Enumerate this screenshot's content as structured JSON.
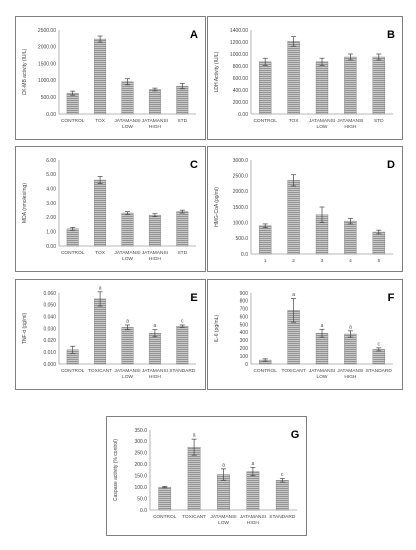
{
  "figure": {
    "panels": [
      {
        "letter": "A"
      },
      {
        "letter": "B"
      },
      {
        "letter": "C"
      },
      {
        "letter": "D"
      },
      {
        "letter": "E"
      },
      {
        "letter": "F"
      },
      {
        "letter": "G"
      }
    ]
  },
  "chart_data": [
    {
      "type": "bar",
      "panel": "A",
      "title": "",
      "xlabel": "",
      "ylabel": "CK-MB activity (IU/L)",
      "categories": [
        [
          "CONTROL"
        ],
        [
          "TOX"
        ],
        [
          "JATAMANSI",
          "LOW"
        ],
        [
          "JATAMANSI",
          "HIGH"
        ],
        [
          "STD"
        ]
      ],
      "values": [
        620,
        2230,
        960,
        730,
        830
      ],
      "errors": [
        60,
        90,
        90,
        40,
        80
      ],
      "annotations": [],
      "yticks": [
        0,
        500,
        1000,
        1500,
        2000,
        2500
      ],
      "yticklabels": [
        "0.00",
        "500.00",
        "1000.00",
        "1500.00",
        "2000.00",
        "2500.00"
      ],
      "ylim": [
        0,
        2500
      ],
      "grid": false,
      "legend": "none"
    },
    {
      "type": "bar",
      "panel": "B",
      "title": "",
      "xlabel": "",
      "ylabel": "LDH Activity (IU/L)",
      "categories": [
        [
          "CONTROL"
        ],
        [
          "TOX"
        ],
        [
          "JATAMANSI",
          "LOW"
        ],
        [
          "JATAMANSI",
          "HIGH"
        ],
        [
          "STD"
        ]
      ],
      "values": [
        870,
        1210,
        870,
        950,
        950
      ],
      "errors": [
        60,
        80,
        60,
        50,
        50
      ],
      "annotations": [],
      "yticks": [
        0,
        200,
        400,
        600,
        800,
        1000,
        1200,
        1400
      ],
      "yticklabels": [
        "0.00",
        "200.00",
        "400.00",
        "600.00",
        "800.00",
        "1000.00",
        "1200.00",
        "1400.00"
      ],
      "ylim": [
        0,
        1400
      ],
      "grid": false,
      "legend": "none"
    },
    {
      "type": "bar",
      "panel": "C",
      "title": "",
      "xlabel": "",
      "ylabel": "MDA (nmoles/mg)",
      "categories": [
        [
          "CONTROL"
        ],
        [
          "TOX"
        ],
        [
          "JATAMANSI",
          "LOW"
        ],
        [
          "JATAMANSI",
          "HIGH"
        ],
        [
          "STD"
        ]
      ],
      "values": [
        1.2,
        4.6,
        2.3,
        2.15,
        2.4
      ],
      "errors": [
        0.1,
        0.25,
        0.1,
        0.1,
        0.1
      ],
      "annotations": [],
      "yticks": [
        0,
        1,
        2,
        3,
        4,
        5,
        6
      ],
      "yticklabels": [
        "0.00",
        "1.00",
        "2.00",
        "3.00",
        "4.00",
        "5.00",
        "6.00"
      ],
      "ylim": [
        0,
        6
      ],
      "grid": false,
      "legend": "none"
    },
    {
      "type": "bar",
      "panel": "D",
      "title": "",
      "xlabel": "",
      "ylabel": "HMG-CoA (pg/ml)",
      "categories": [
        [
          "1"
        ],
        [
          "2"
        ],
        [
          "3"
        ],
        [
          "4"
        ],
        [
          "5"
        ]
      ],
      "values": [
        900,
        2350,
        1250,
        1050,
        700
      ],
      "errors": [
        60,
        180,
        250,
        90,
        60
      ],
      "annotations": [],
      "yticks": [
        0,
        500,
        1000,
        1500,
        2000,
        2500,
        3000
      ],
      "yticklabels": [
        "0.0",
        "500.0",
        "1000.0",
        "1500.0",
        "2000.0",
        "2500.0",
        "3000.0"
      ],
      "ylim": [
        0,
        3000
      ],
      "grid": false,
      "legend": "none"
    },
    {
      "type": "bar",
      "panel": "E",
      "title": "",
      "xlabel": "",
      "ylabel": "TNF-α (pg/ml)",
      "categories": [
        [
          "CONTROL"
        ],
        [
          "TOXICANT"
        ],
        [
          "JATAMANSI",
          "LOW"
        ],
        [
          "JATAMANSI",
          "HIGH"
        ],
        [
          "STANDARD"
        ]
      ],
      "values": [
        0.012,
        0.055,
        0.031,
        0.026,
        0.032
      ],
      "errors": [
        0.003,
        0.006,
        0.002,
        0.003,
        0.001
      ],
      "annotations": [
        "",
        "a",
        "a",
        "a",
        "c"
      ],
      "yticks": [
        0,
        0.01,
        0.02,
        0.03,
        0.04,
        0.05,
        0.06
      ],
      "yticklabels": [
        "0.000",
        "0.010",
        "0.020",
        "0.030",
        "0.040",
        "0.050",
        "0.060"
      ],
      "ylim": [
        0,
        0.06
      ],
      "grid": false,
      "legend": "none"
    },
    {
      "type": "bar",
      "panel": "F",
      "title": "",
      "xlabel": "",
      "ylabel": "IL-6 (pg/mL)",
      "categories": [
        [
          "CONTROL"
        ],
        [
          "TOXICANT"
        ],
        [
          "JATAMANSI",
          "LOW"
        ],
        [
          "JATAMANSI",
          "HIGH"
        ],
        [
          "STANDARD"
        ]
      ],
      "values": [
        50,
        680,
        390,
        380,
        185
      ],
      "errors": [
        15,
        150,
        50,
        40,
        20
      ],
      "annotations": [
        "",
        "a",
        "a",
        "a",
        "c"
      ],
      "yticks": [
        0,
        100,
        200,
        300,
        400,
        500,
        600,
        700,
        800,
        900
      ],
      "yticklabels": [
        "0",
        "100",
        "200",
        "300",
        "400",
        "500",
        "600",
        "700",
        "800",
        "900"
      ],
      "ylim": [
        0,
        900
      ],
      "grid": false,
      "legend": "none"
    },
    {
      "type": "bar",
      "panel": "G",
      "title": "",
      "xlabel": "",
      "ylabel": "Caspase activity (% control)",
      "categories": [
        [
          "CONTROL"
        ],
        [
          "TOXICANT"
        ],
        [
          "JATAMANSI",
          "LOW"
        ],
        [
          "JATAMANSI",
          "HIGH"
        ],
        [
          "STANDARD"
        ]
      ],
      "values": [
        100,
        275,
        155,
        168,
        130
      ],
      "errors": [
        3,
        35,
        25,
        18,
        8
      ],
      "annotations": [
        "",
        "a",
        "a",
        "a",
        "c"
      ],
      "yticks": [
        0,
        50,
        100,
        150,
        200,
        250,
        300,
        350
      ],
      "yticklabels": [
        "0.0",
        "50.0",
        "100.0",
        "150.0",
        "200.0",
        "250.0",
        "300.0",
        "350.0"
      ],
      "ylim": [
        0,
        350
      ],
      "grid": false,
      "legend": "none"
    }
  ],
  "colors": {
    "bar_fill": "#c9c9c9",
    "bar_stripe": "#8e8e8e",
    "bar_edge": "#7a7a7a",
    "axis": "#a0a0a0",
    "text": "#444444",
    "error": "#444444",
    "frame": "#7f7f7f",
    "panel_letter": "#000000"
  }
}
